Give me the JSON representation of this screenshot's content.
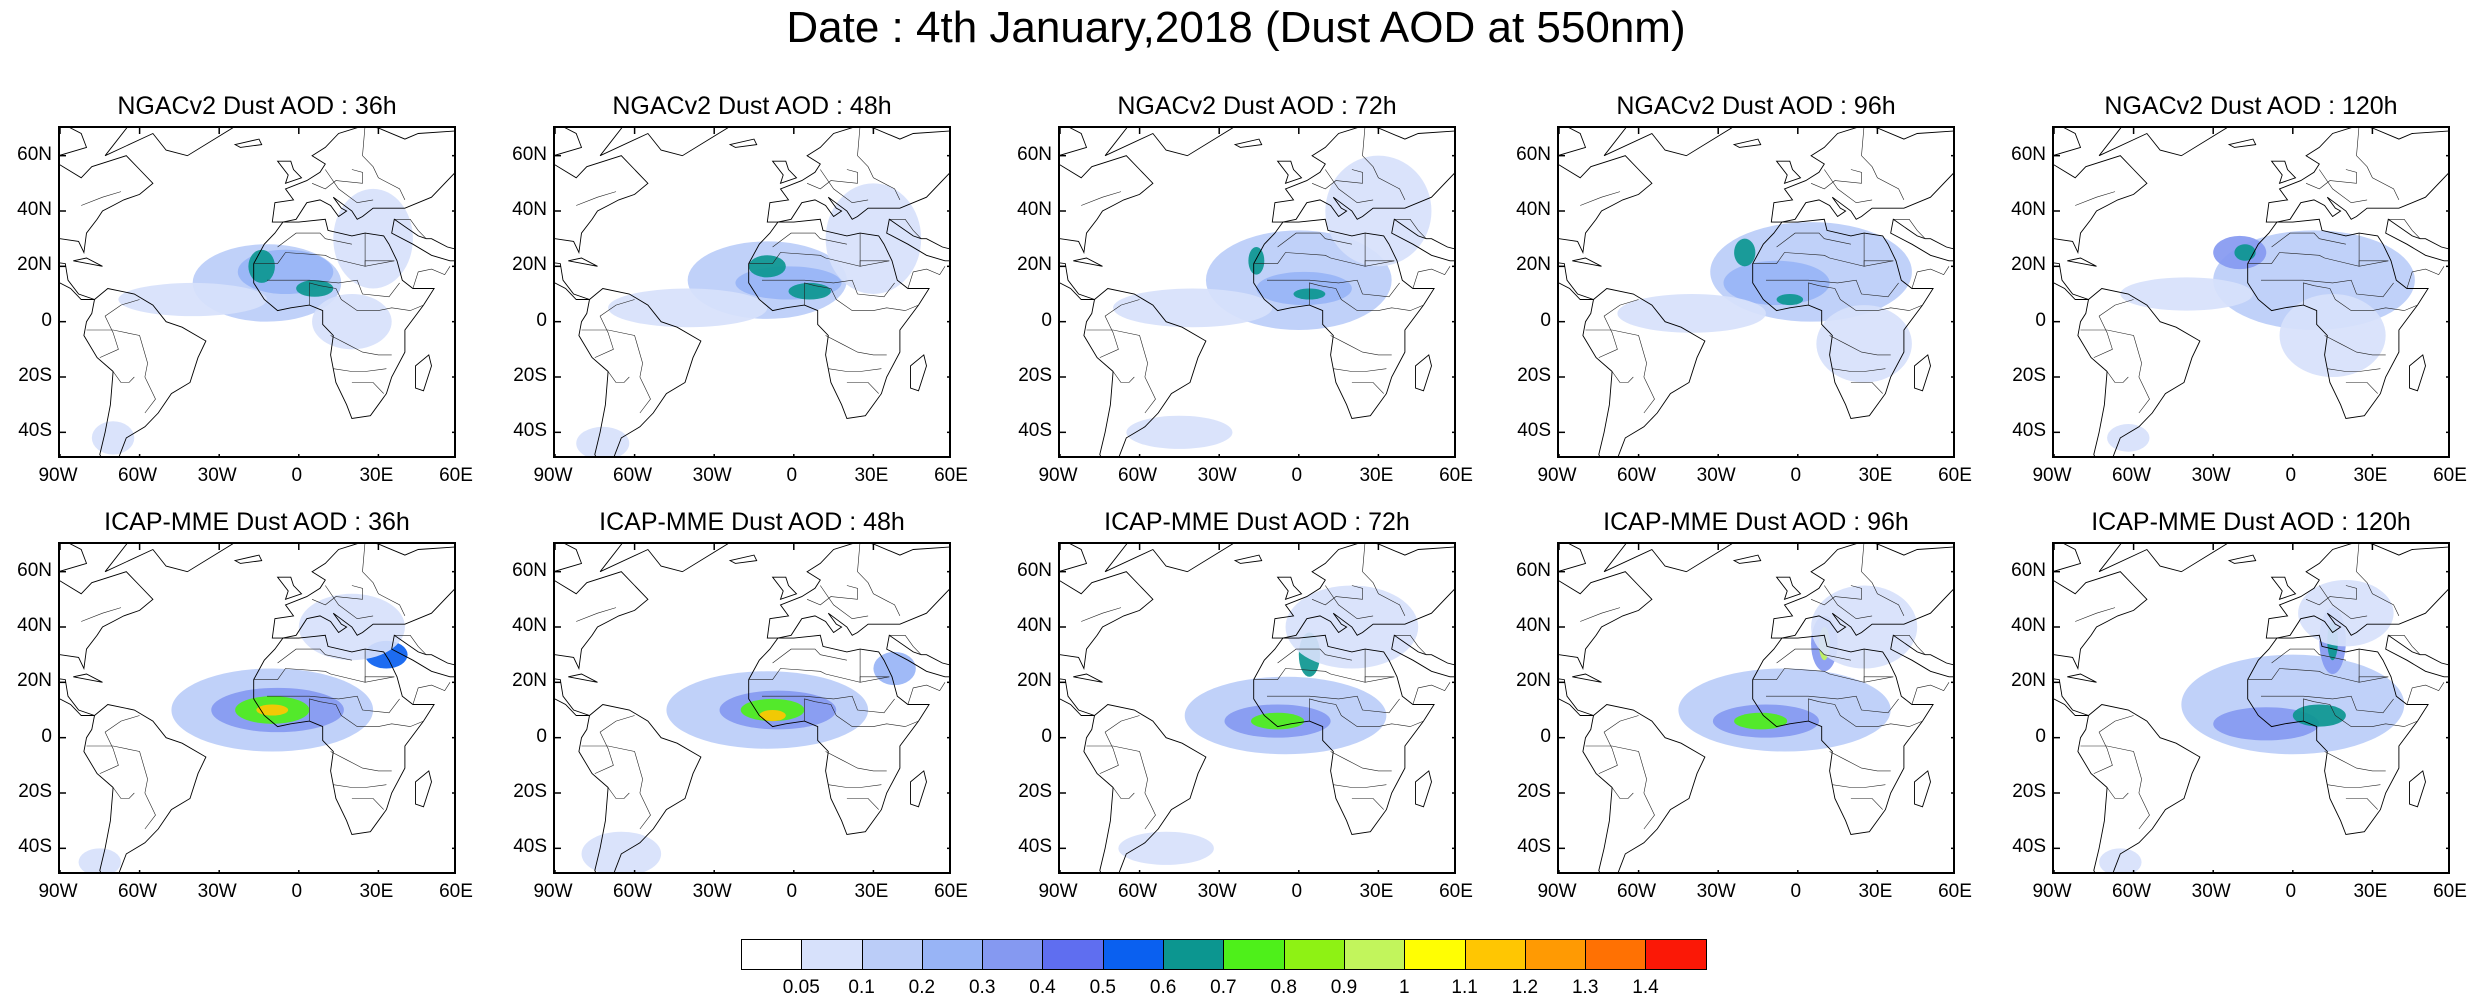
{
  "title": "Date : 4th January,2018 (Dust AOD at 550nm)",
  "panels": [
    {
      "title": "NGACv2 Dust AOD : 36h",
      "plumes": [
        {
          "lon": -12,
          "lat": 14,
          "rlon": 28,
          "rlat": 14,
          "level": 2
        },
        {
          "lon": -5,
          "lat": 18,
          "rlon": 18,
          "rlat": 8,
          "level": 3
        },
        {
          "lon": -14,
          "lat": 20,
          "rlon": 5,
          "rlat": 6,
          "level": 7
        },
        {
          "lon": 6,
          "lat": 12,
          "rlon": 7,
          "rlat": 3,
          "level": 7
        },
        {
          "lon": -40,
          "lat": 8,
          "rlon": 28,
          "rlat": 6,
          "level": 1
        },
        {
          "lon": 28,
          "lat": 30,
          "rlon": 15,
          "rlat": 18,
          "level": 1
        },
        {
          "lon": 20,
          "lat": 0,
          "rlon": 15,
          "rlat": 10,
          "level": 1
        },
        {
          "lon": -70,
          "lat": -42,
          "rlon": 8,
          "rlat": 6,
          "level": 1
        }
      ]
    },
    {
      "title": "NGACv2 Dust AOD : 48h",
      "plumes": [
        {
          "lon": -10,
          "lat": 15,
          "rlon": 30,
          "rlat": 14,
          "level": 2
        },
        {
          "lon": -2,
          "lat": 14,
          "rlon": 20,
          "rlat": 6,
          "level": 3
        },
        {
          "lon": -10,
          "lat": 20,
          "rlon": 7,
          "rlat": 4,
          "level": 7
        },
        {
          "lon": 6,
          "lat": 11,
          "rlon": 8,
          "rlat": 3,
          "level": 7
        },
        {
          "lon": -40,
          "lat": 5,
          "rlon": 30,
          "rlat": 7,
          "level": 1
        },
        {
          "lon": 30,
          "lat": 30,
          "rlon": 18,
          "rlat": 20,
          "level": 1
        },
        {
          "lon": -72,
          "lat": -44,
          "rlon": 10,
          "rlat": 6,
          "level": 1
        }
      ]
    },
    {
      "title": "NGACv2 Dust AOD : 72h",
      "plumes": [
        {
          "lon": 0,
          "lat": 15,
          "rlon": 35,
          "rlat": 18,
          "level": 2
        },
        {
          "lon": 2,
          "lat": 12,
          "rlon": 18,
          "rlat": 6,
          "level": 3
        },
        {
          "lon": -16,
          "lat": 22,
          "rlon": 3,
          "rlat": 5,
          "level": 7
        },
        {
          "lon": 4,
          "lat": 10,
          "rlon": 6,
          "rlat": 2,
          "level": 7
        },
        {
          "lon": -40,
          "lat": 5,
          "rlon": 30,
          "rlat": 7,
          "level": 1
        },
        {
          "lon": 30,
          "lat": 40,
          "rlon": 20,
          "rlat": 20,
          "level": 1
        },
        {
          "lon": -45,
          "lat": -40,
          "rlon": 20,
          "rlat": 6,
          "level": 1
        }
      ]
    },
    {
      "title": "NGACv2 Dust AOD : 96h",
      "plumes": [
        {
          "lon": 5,
          "lat": 18,
          "rlon": 38,
          "rlat": 18,
          "level": 2
        },
        {
          "lon": -8,
          "lat": 14,
          "rlon": 20,
          "rlat": 8,
          "level": 3
        },
        {
          "lon": -20,
          "lat": 25,
          "rlon": 4,
          "rlat": 5,
          "level": 7
        },
        {
          "lon": -3,
          "lat": 8,
          "rlon": 5,
          "rlat": 2,
          "level": 7
        },
        {
          "lon": -40,
          "lat": 3,
          "rlon": 28,
          "rlat": 7,
          "level": 1
        },
        {
          "lon": 25,
          "lat": -8,
          "rlon": 18,
          "rlat": 14,
          "level": 1
        }
      ]
    },
    {
      "title": "NGACv2 Dust AOD : 120h",
      "plumes": [
        {
          "lon": 8,
          "lat": 15,
          "rlon": 38,
          "rlat": 18,
          "level": 2
        },
        {
          "lon": -20,
          "lat": 25,
          "rlon": 10,
          "rlat": 6,
          "level": 4
        },
        {
          "lon": -18,
          "lat": 25,
          "rlon": 4,
          "rlat": 3,
          "level": 7
        },
        {
          "lon": -40,
          "lat": 10,
          "rlon": 25,
          "rlat": 6,
          "level": 1
        },
        {
          "lon": 15,
          "lat": -5,
          "rlon": 20,
          "rlat": 15,
          "level": 1
        },
        {
          "lon": -62,
          "lat": -42,
          "rlon": 8,
          "rlat": 5,
          "level": 1
        }
      ]
    },
    {
      "title": "ICAP-MME Dust AOD : 36h",
      "plumes": [
        {
          "lon": -10,
          "lat": 10,
          "rlon": 38,
          "rlat": 15,
          "level": 2
        },
        {
          "lon": -8,
          "lat": 10,
          "rlon": 25,
          "rlat": 8,
          "level": 4
        },
        {
          "lon": -10,
          "lat": 10,
          "rlon": 14,
          "rlat": 5,
          "level": 8
        },
        {
          "lon": -10,
          "lat": 10,
          "rlon": 6,
          "rlat": 2,
          "level": 12
        },
        {
          "lon": 33,
          "lat": 30,
          "rlon": 8,
          "rlat": 5,
          "level": 6
        },
        {
          "lon": 20,
          "lat": 40,
          "rlon": 20,
          "rlat": 12,
          "level": 1
        },
        {
          "lon": -75,
          "lat": -45,
          "rlon": 8,
          "rlat": 5,
          "level": 1
        }
      ]
    },
    {
      "title": "ICAP-MME Dust AOD : 48h",
      "plumes": [
        {
          "lon": -10,
          "lat": 10,
          "rlon": 38,
          "rlat": 14,
          "level": 2
        },
        {
          "lon": -6,
          "lat": 10,
          "rlon": 22,
          "rlat": 7,
          "level": 4
        },
        {
          "lon": -8,
          "lat": 10,
          "rlon": 12,
          "rlat": 4,
          "level": 8
        },
        {
          "lon": -8,
          "lat": 8,
          "rlon": 5,
          "rlat": 2,
          "level": 12
        },
        {
          "lon": 38,
          "lat": 25,
          "rlon": 8,
          "rlat": 6,
          "level": 3
        },
        {
          "lon": -65,
          "lat": -42,
          "rlon": 15,
          "rlat": 8,
          "level": 1
        }
      ]
    },
    {
      "title": "ICAP-MME Dust AOD : 72h",
      "plumes": [
        {
          "lon": -5,
          "lat": 8,
          "rlon": 38,
          "rlat": 14,
          "level": 2
        },
        {
          "lon": -8,
          "lat": 6,
          "rlon": 20,
          "rlat": 6,
          "level": 4
        },
        {
          "lon": -8,
          "lat": 6,
          "rlon": 10,
          "rlat": 3,
          "level": 8
        },
        {
          "lon": 4,
          "lat": 30,
          "rlon": 4,
          "rlat": 8,
          "level": 7
        },
        {
          "lon": 20,
          "lat": 40,
          "rlon": 25,
          "rlat": 15,
          "level": 1
        },
        {
          "lon": -50,
          "lat": -40,
          "rlon": 18,
          "rlat": 6,
          "level": 1
        }
      ]
    },
    {
      "title": "ICAP-MME Dust AOD : 96h",
      "plumes": [
        {
          "lon": -5,
          "lat": 10,
          "rlon": 40,
          "rlat": 15,
          "level": 2
        },
        {
          "lon": -12,
          "lat": 6,
          "rlon": 20,
          "rlat": 6,
          "level": 4
        },
        {
          "lon": -14,
          "lat": 6,
          "rlon": 10,
          "rlat": 3,
          "level": 8
        },
        {
          "lon": 10,
          "lat": 34,
          "rlon": 5,
          "rlat": 10,
          "level": 4
        },
        {
          "lon": 10,
          "lat": 34,
          "rlon": 2,
          "rlat": 6,
          "level": 10
        },
        {
          "lon": 25,
          "lat": 40,
          "rlon": 20,
          "rlat": 15,
          "level": 1
        }
      ]
    },
    {
      "title": "ICAP-MME Dust AOD : 120h",
      "plumes": [
        {
          "lon": 0,
          "lat": 12,
          "rlon": 42,
          "rlat": 18,
          "level": 2
        },
        {
          "lon": -10,
          "lat": 5,
          "rlon": 20,
          "rlat": 6,
          "level": 4
        },
        {
          "lon": 10,
          "lat": 8,
          "rlon": 10,
          "rlat": 4,
          "level": 7
        },
        {
          "lon": 15,
          "lat": 35,
          "rlon": 5,
          "rlat": 12,
          "level": 4
        },
        {
          "lon": 15,
          "lat": 35,
          "rlon": 2,
          "rlat": 7,
          "level": 7
        },
        {
          "lon": 20,
          "lat": 45,
          "rlon": 18,
          "rlat": 12,
          "level": 1
        },
        {
          "lon": -65,
          "lat": -45,
          "rlon": 8,
          "rlat": 5,
          "level": 1
        }
      ]
    }
  ],
  "map_extent": {
    "lon_min": -90,
    "lon_max": 60,
    "lat_min": -50,
    "lat_max": 70
  },
  "lat_ticks": [
    {
      "value": 60,
      "label": "60N"
    },
    {
      "value": 40,
      "label": "40N"
    },
    {
      "value": 20,
      "label": "20N"
    },
    {
      "value": 0,
      "label": "0"
    },
    {
      "value": -20,
      "label": "20S"
    },
    {
      "value": -40,
      "label": "40S"
    }
  ],
  "lon_ticks": [
    {
      "value": -90,
      "label": "90W"
    },
    {
      "value": -60,
      "label": "60W"
    },
    {
      "value": -30,
      "label": "30W"
    },
    {
      "value": 0,
      "label": "0"
    },
    {
      "value": 30,
      "label": "30E"
    },
    {
      "value": 60,
      "label": "60E"
    }
  ],
  "colorbar": {
    "colors": [
      "#ffffff",
      "#d7e1fb",
      "#bbcdf8",
      "#98b4f6",
      "#8599f1",
      "#5f6ef0",
      "#0a60f0",
      "#0c9690",
      "#4ef01a",
      "#8ef214",
      "#c2f55c",
      "#fffe03",
      "#ffc602",
      "#ff9a03",
      "#ff7103",
      "#fb1806"
    ],
    "labels": [
      "0.05",
      "0.1",
      "0.2",
      "0.3",
      "0.4",
      "0.5",
      "0.6",
      "0.7",
      "0.8",
      "0.9",
      "1",
      "1.1",
      "1.2",
      "1.3",
      "1.4"
    ]
  }
}
